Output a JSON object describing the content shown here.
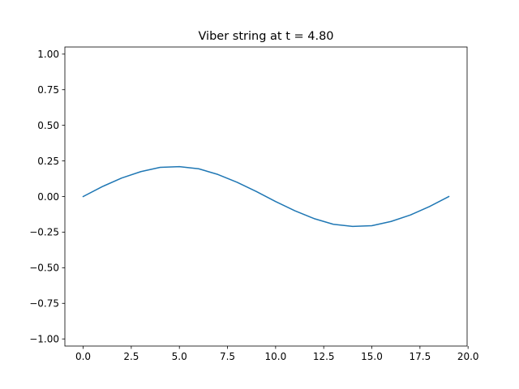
{
  "chart_data": {
    "type": "line",
    "title": "Viber string at t = 4.80",
    "xlabel": "",
    "ylabel": "",
    "xlim": [
      -0.95,
      19.95
    ],
    "ylim": [
      -1.05,
      1.05
    ],
    "xticks": [
      0.0,
      2.5,
      5.0,
      7.5,
      10.0,
      12.5,
      15.0,
      17.5,
      20.0
    ],
    "xtick_labels": [
      "0.0",
      "2.5",
      "5.0",
      "7.5",
      "10.0",
      "12.5",
      "15.0",
      "17.5",
      "20.0"
    ],
    "yticks": [
      -1.0,
      -0.75,
      -0.5,
      -0.25,
      0.0,
      0.25,
      0.5,
      0.75,
      1.0
    ],
    "ytick_labels": [
      "−1.00",
      "−0.75",
      "−0.50",
      "−0.25",
      "0.00",
      "0.25",
      "0.50",
      "0.75",
      "1.00"
    ],
    "grid": false,
    "legend": "none",
    "series": [
      {
        "color": "#1f77b4",
        "x": [
          0,
          1,
          2,
          3,
          4,
          5,
          6,
          7,
          8,
          9,
          10,
          11,
          12,
          13,
          14,
          15,
          16,
          17,
          18,
          19
        ],
        "y": [
          0.0,
          0.07,
          0.13,
          0.175,
          0.205,
          0.21,
          0.195,
          0.155,
          0.1,
          0.035,
          -0.035,
          -0.1,
          -0.155,
          -0.195,
          -0.21,
          -0.205,
          -0.175,
          -0.13,
          -0.07,
          0.0
        ]
      }
    ]
  }
}
